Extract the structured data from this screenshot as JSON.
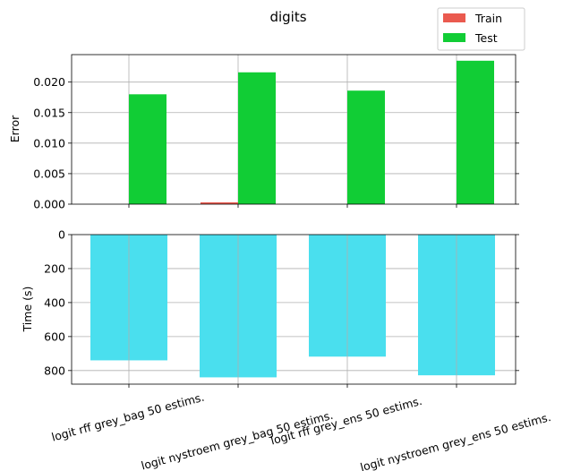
{
  "chart_data": [
    {
      "type": "bar",
      "title": "digits",
      "ylabel": "Error",
      "xlabel": "",
      "ylim": [
        0,
        0.0245
      ],
      "yticks": [
        "0.000",
        "0.005",
        "0.010",
        "0.015",
        "0.020"
      ],
      "ytick_values": [
        0,
        0.005,
        0.01,
        0.015,
        0.02
      ],
      "categories": [
        "logit rff grey_bag 50 estims.",
        "logit nystroem grey_bag 50 estims.",
        "logit rff grey_ens 50 estims.",
        "logit nystroem grey_ens 50 estims."
      ],
      "series": [
        {
          "name": "Train",
          "color": "#ea5a4f",
          "values": [
            0.0,
            0.0003,
            0.0,
            0.0
          ]
        },
        {
          "name": "Test",
          "color": "#11cd35",
          "values": [
            0.018,
            0.0216,
            0.0186,
            0.0235
          ]
        }
      ],
      "grid": true,
      "legend": "top-right"
    },
    {
      "type": "bar",
      "ylabel": "Time (s)",
      "xlabel": "",
      "ylim": [
        880,
        0
      ],
      "inverted_y": true,
      "yticks": [
        "0",
        "200",
        "400",
        "600",
        "800"
      ],
      "ytick_values": [
        0,
        200,
        400,
        600,
        800
      ],
      "categories": [
        "logit rff grey_bag 50 estims.",
        "logit nystroem grey_bag 50 estims.",
        "logit rff grey_ens 50 estims.",
        "logit nystroem grey_ens 50 estims."
      ],
      "color": "#4adfee",
      "values": [
        740,
        840,
        718,
        828
      ],
      "grid": true
    }
  ]
}
